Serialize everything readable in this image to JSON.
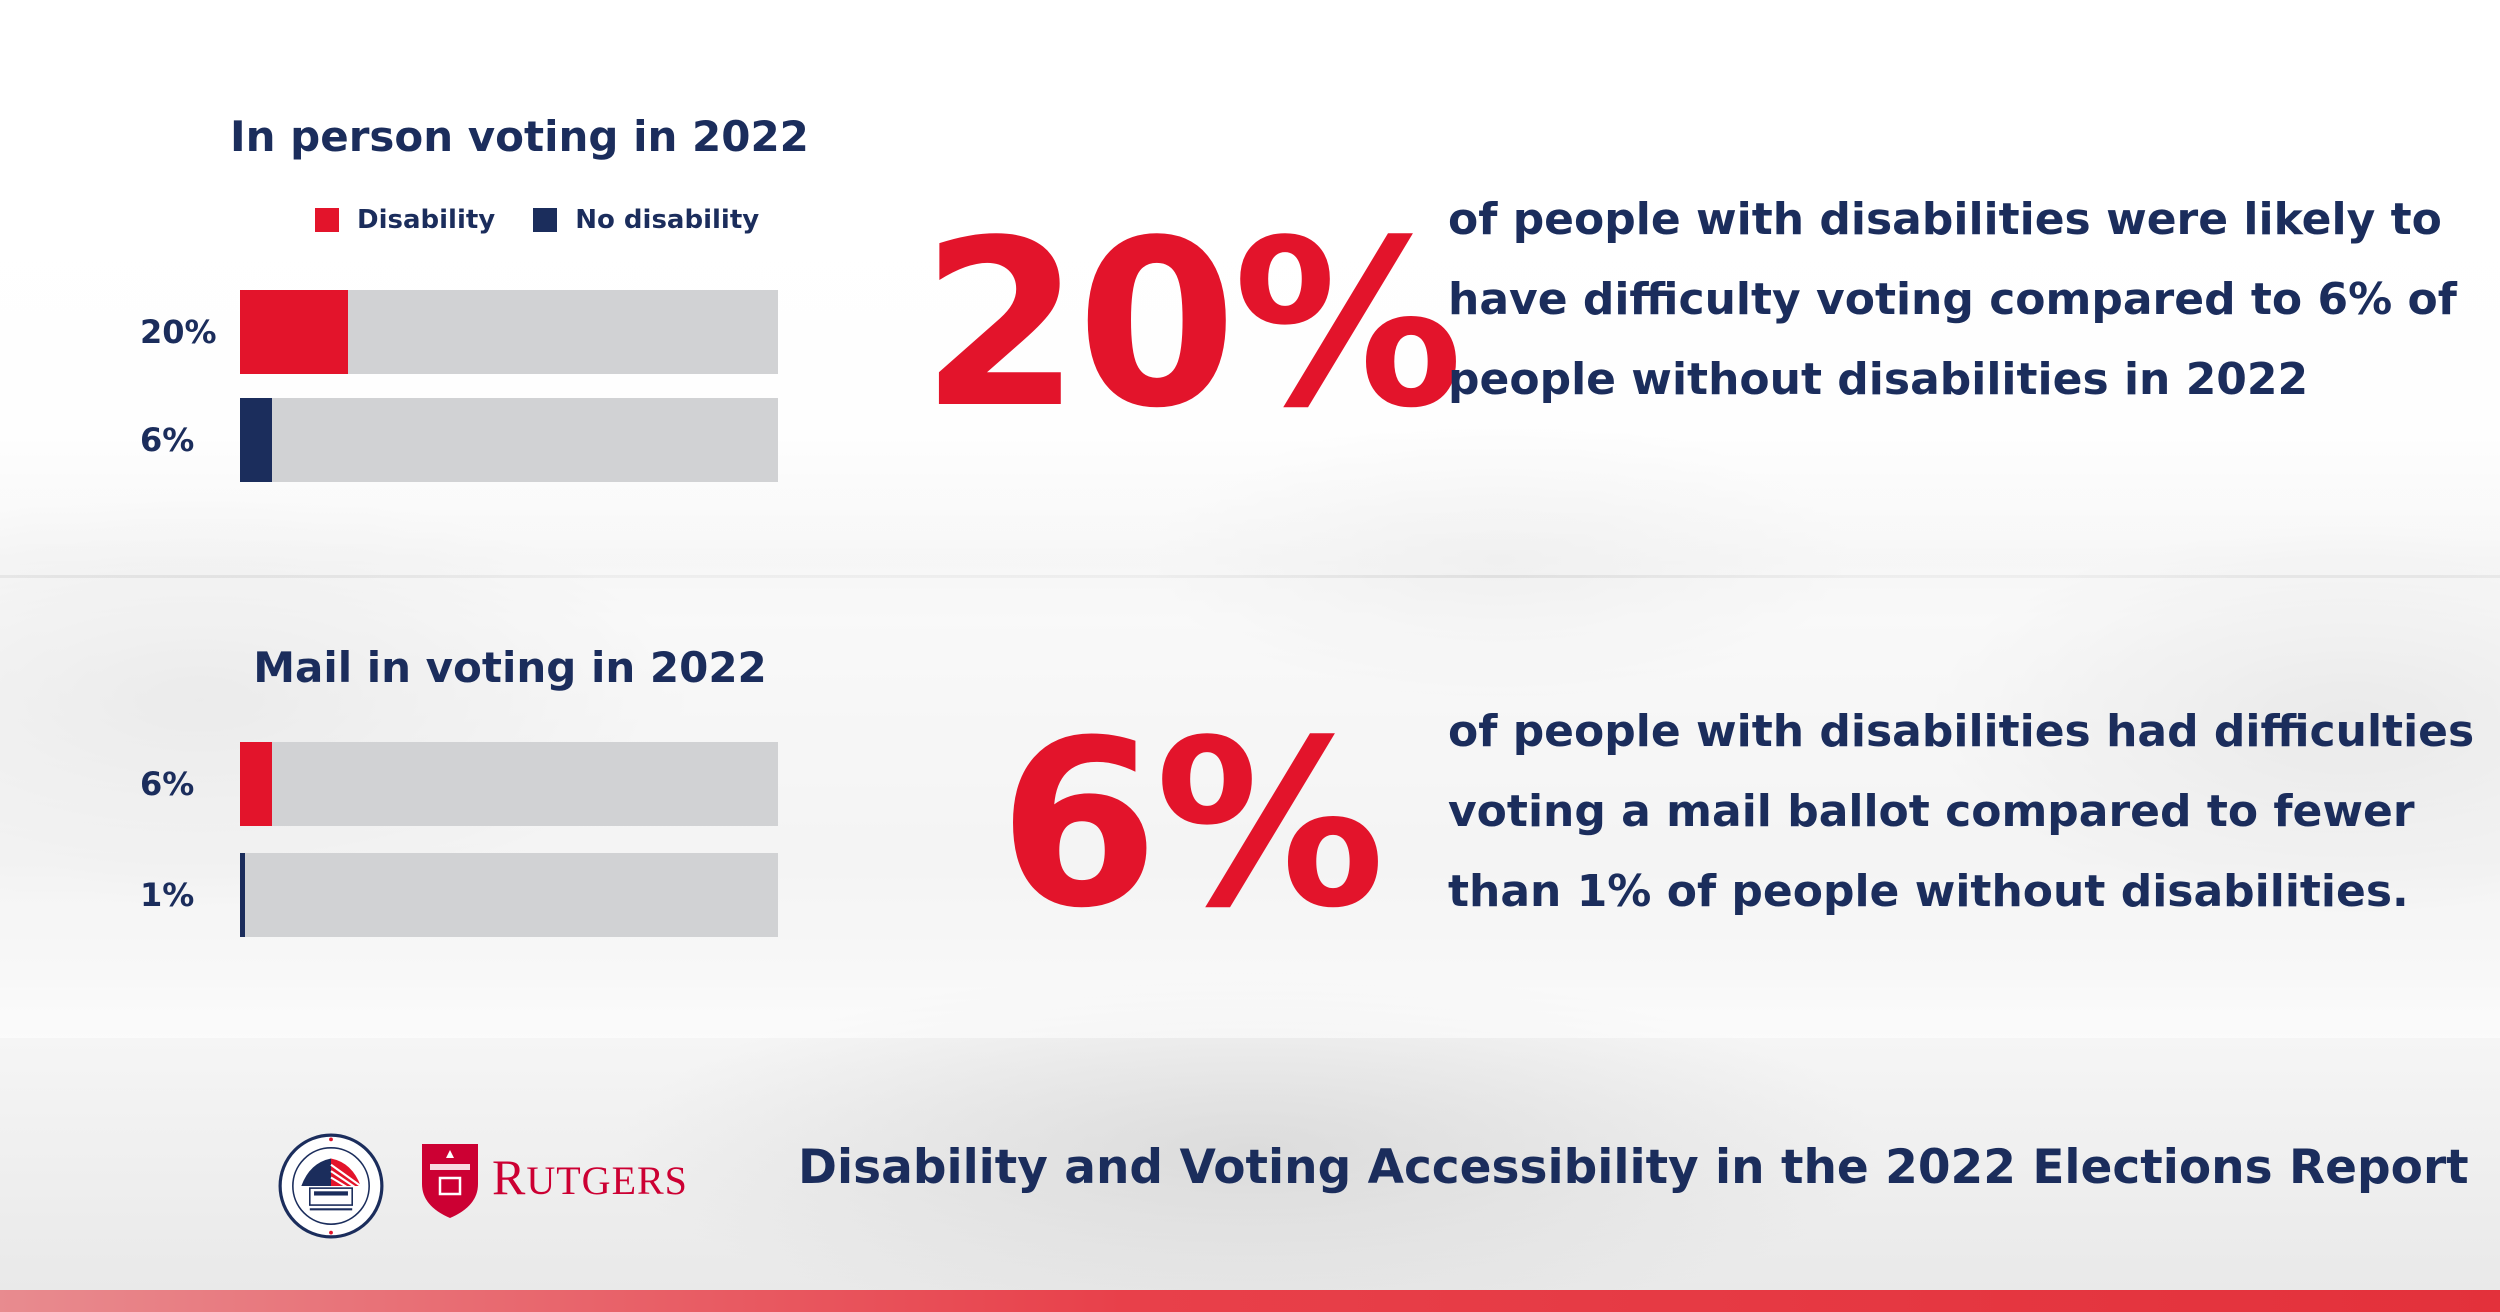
{
  "chart_data": [
    {
      "type": "bar",
      "orientation": "horizontal",
      "title": "In person voting in 2022",
      "legend": [
        "Disability",
        "No disability"
      ],
      "legend_position": "top",
      "xlim": [
        0,
        100
      ],
      "series": [
        {
          "name": "Disability",
          "value": 20,
          "label": "20%",
          "color": "#e3142b"
        },
        {
          "name": "No disability",
          "value": 6,
          "label": "6%",
          "color": "#1b2d5c"
        }
      ]
    },
    {
      "type": "bar",
      "orientation": "horizontal",
      "title": "Mail in voting in 2022",
      "xlim": [
        0,
        100
      ],
      "series": [
        {
          "name": "Disability",
          "value": 6,
          "label": "6%",
          "color": "#e3142b"
        },
        {
          "name": "No disability",
          "value": 1,
          "label": "1%",
          "color": "#1b2d5c"
        }
      ]
    }
  ],
  "stats": [
    {
      "value": "20%",
      "text": "of people with disabilities were likely to have difficulty voting compared to 6% of people without disabilities in 2022"
    },
    {
      "value": "6%",
      "text": "of people with disabilities had difficulties voting a mail ballot compared to fewer than 1% of people without disabilities."
    }
  ],
  "footer": {
    "title": "Disability and Voting Accessibility in the 2022 Elections Report",
    "rutgers_wordmark": "Rutgers",
    "seal_icon": "election-assistance-commission-seal-icon",
    "shield_icon": "rutgers-shield-icon"
  },
  "colors": {
    "disability": "#e3142b",
    "no_disability": "#1b2d5c",
    "track": "#d1d2d4",
    "text": "#1b2d5c",
    "accent": "#e3142b"
  }
}
